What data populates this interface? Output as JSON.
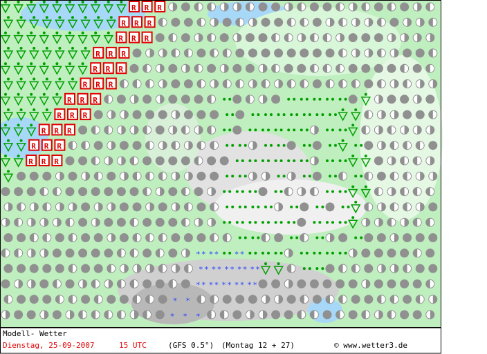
{
  "footer": {
    "title": "Modell- Wetter",
    "date": "Dienstag, 25-09-2007",
    "time": "15 UTC",
    "model": "(GFS 0.5°)",
    "run": "(Montag 12 + 27)",
    "copyright": "© www.wetter3.de"
  }
}
